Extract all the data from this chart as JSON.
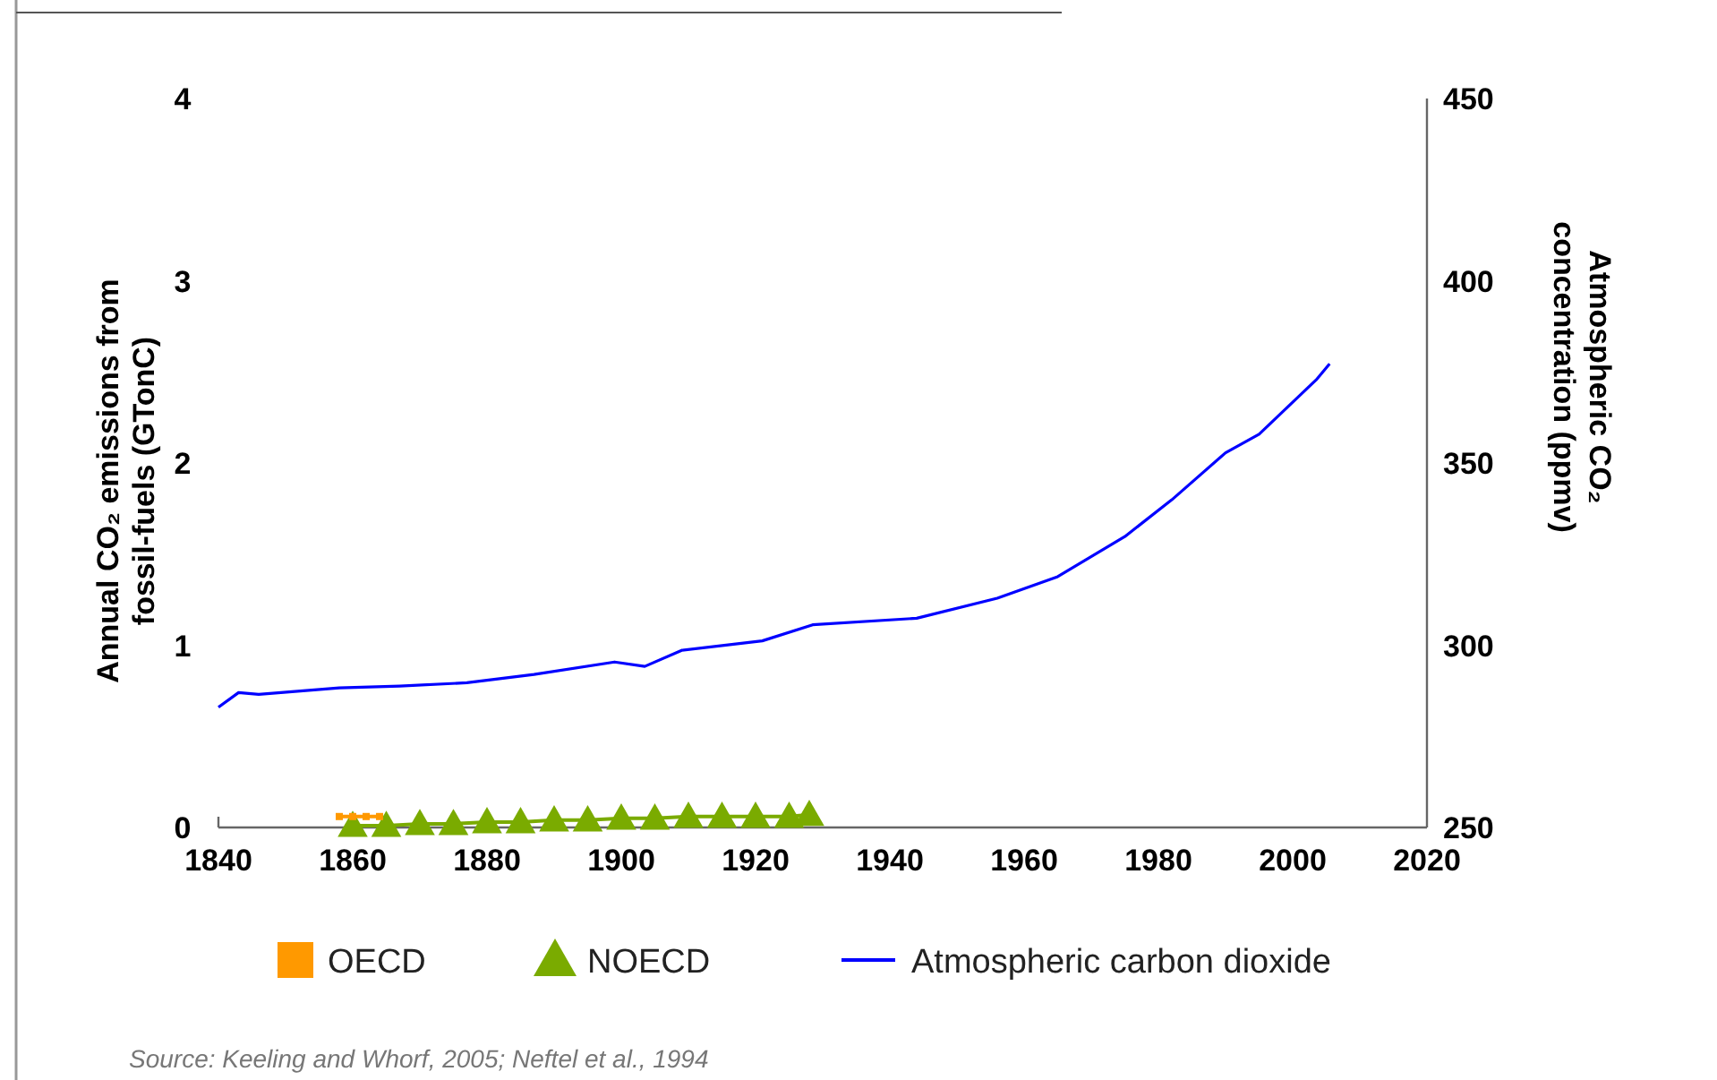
{
  "chart_data": {
    "type": "line",
    "xlabel": null,
    "ylabel": "Annual CO₂ emissions from fossil-fuels (GTonC)",
    "y2label": "Atmospheric CO₂ concentration (ppmv)",
    "xlim": [
      1840,
      2020
    ],
    "xticks": [
      1840,
      1860,
      1880,
      1900,
      1920,
      1940,
      1960,
      1980,
      2000,
      2020
    ],
    "ylim": [
      0,
      4
    ],
    "yticks": [
      0,
      1,
      2,
      3,
      4
    ],
    "y2lim": [
      250,
      450
    ],
    "y2ticks": [
      250,
      300,
      350,
      400,
      450
    ],
    "grid": false,
    "legend": "bottom",
    "line_style": "solid",
    "series": [
      {
        "name": "OECD",
        "color": "#ff9900",
        "marker": "square",
        "x": [
          1858,
          1860,
          1862,
          1864
        ],
        "values": [
          0.06,
          0.06,
          0.06,
          0.06
        ]
      },
      {
        "name": "NOECD",
        "color": "#7aab00",
        "marker": "triangle",
        "x": [
          1860,
          1865,
          1870,
          1875,
          1880,
          1885,
          1890,
          1895,
          1900,
          1905,
          1910,
          1915,
          1920,
          1925,
          1928
        ],
        "values": [
          0.01,
          0.01,
          0.02,
          0.02,
          0.03,
          0.03,
          0.04,
          0.04,
          0.05,
          0.05,
          0.06,
          0.06,
          0.06,
          0.06,
          0.07
        ]
      },
      {
        "name": "Atmospheric carbon dioxide",
        "color": "#0000ff",
        "marker": "none",
        "axis": "y2",
        "x": [
          1840,
          1843,
          1846,
          1858,
          1867,
          1877,
          1887,
          1899,
          1903.5,
          1909,
          1921,
          1928.5,
          1944,
          1956,
          1965,
          1975,
          1982,
          1990,
          1995,
          2003.5,
          2005.5
        ],
        "values": [
          283,
          287,
          286.5,
          288.3,
          288.8,
          289.7,
          292,
          295.4,
          294.2,
          298.6,
          301.2,
          305.6,
          307.4,
          312.9,
          318.8,
          329.8,
          339.9,
          352.8,
          357.9,
          372.8,
          377.2
        ]
      }
    ],
    "annotations": [
      "Source:  Keeling and Whorf, 2005; Neftel et al., 1994"
    ]
  }
}
